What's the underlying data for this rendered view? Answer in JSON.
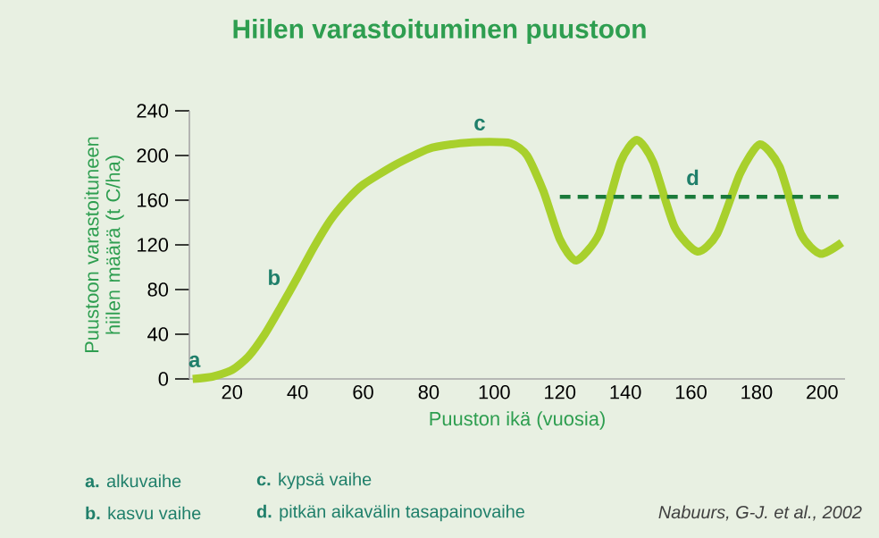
{
  "chart_data": {
    "type": "line",
    "title": "Hiilen varastoituminen puustoon",
    "xlabel": "Puuston ikä (vuosia)",
    "ylabel": "Puustoon varastoituneen hiilen määrä (t C/ha)",
    "series": [
      {
        "color": "#a8d02c",
        "x": [
          8,
          14,
          20,
          25,
          30,
          35,
          40,
          45,
          50,
          55,
          60,
          70,
          80,
          87,
          95,
          105,
          110,
          115,
          120,
          125,
          132,
          138.5,
          143.5,
          148.5,
          155,
          162,
          168,
          175,
          181,
          187,
          193.5,
          199.5,
          206
        ],
        "values": [
          0,
          2,
          8,
          20,
          40,
          65,
          91,
          118,
          142,
          160,
          174,
          192,
          206,
          210,
          212,
          211,
          200,
          168,
          125,
          106,
          130,
          194,
          214,
          194,
          136,
          114,
          130,
          184,
          210,
          190,
          130,
          112,
          122
        ]
      },
      {
        "type": "line",
        "line_style": "dashed",
        "color": "#1a7a3a",
        "x": [
          120,
          205
        ],
        "values": [
          163,
          163
        ]
      }
    ],
    "xlim": [
      7,
      207
    ],
    "ylim": [
      0,
      240
    ],
    "xticks": [
      20,
      40,
      60,
      80,
      100,
      120,
      140,
      160,
      180,
      200
    ],
    "yticks": [
      0,
      40,
      80,
      120,
      160,
      200,
      240
    ],
    "annotations": [
      {
        "text": "a",
        "x": 8,
        "y": 0
      },
      {
        "text": "b",
        "x": 40,
        "y": 91
      },
      {
        "text": "c",
        "x": 95,
        "y": 212
      },
      {
        "text": "d",
        "x": 160,
        "y": 163
      },
      "**a.** alkuvaihe",
      "**b.** kasvu vaihe",
      "**c.** kypsä vaihe",
      "**d.** pitkän aikavälin tasapainovaihe",
      "*Nabuurs, G-J. et al., 2002*"
    ]
  }
}
